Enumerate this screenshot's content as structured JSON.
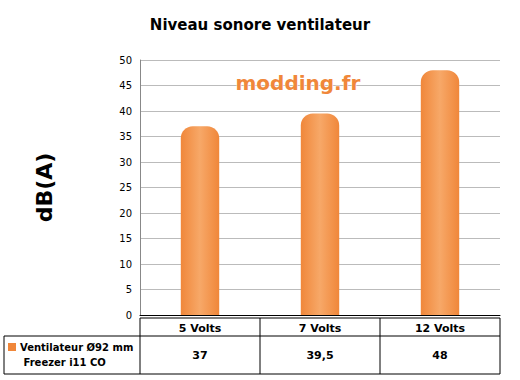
{
  "chart_data": {
    "type": "bar",
    "title": "Niveau sonore ventilateur",
    "y_label": "dB(A)",
    "categories": [
      "5 Volts",
      "7 Volts",
      "12 Volts"
    ],
    "series": [
      {
        "name": "Ventilateur Ø92 mm Freezer i11 CO",
        "color": "#f0873a",
        "values": [
          37,
          39.5,
          48
        ],
        "value_labels": [
          "37",
          "39,5",
          "48"
        ]
      }
    ],
    "ylim": [
      0,
      50
    ],
    "yticks": [
      0,
      5,
      10,
      15,
      20,
      25,
      30,
      35,
      40,
      45,
      50
    ],
    "grid": true,
    "annotations": [
      "modding.fr"
    ]
  }
}
